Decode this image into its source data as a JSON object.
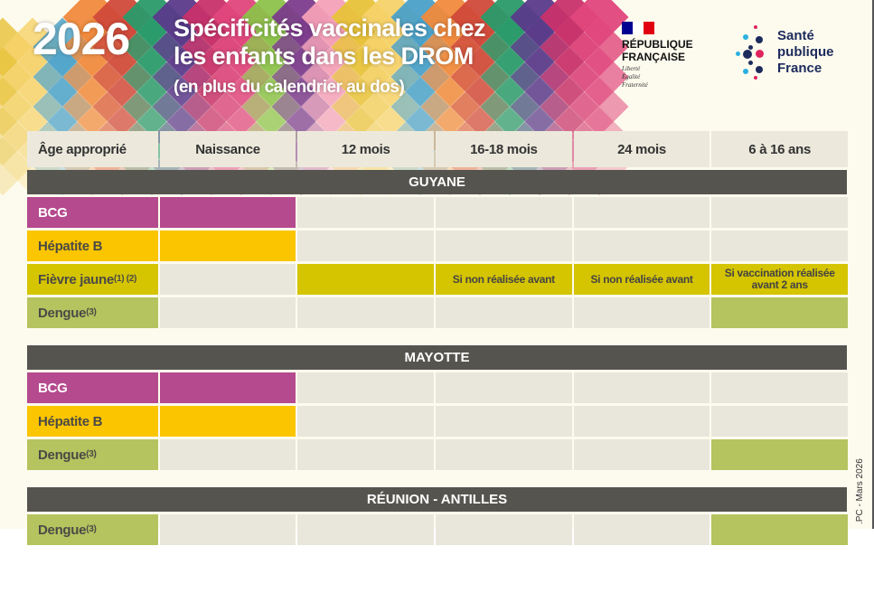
{
  "header": {
    "year": "2026",
    "title_line1": "Spécificités vaccinales chez",
    "title_line2": "les enfants dans les DROM",
    "subtitle": "(en plus du calendrier au dos)"
  },
  "logos": {
    "rf_name_1": "RÉPUBLIQUE",
    "rf_name_2": "FRANÇAISE",
    "rf_motto": [
      "Liberté",
      "Égalité",
      "Fraternité"
    ],
    "spf": [
      "Santé",
      "publique",
      "France"
    ]
  },
  "colors": {
    "bcg": "#b54a8e",
    "hepatite_b": "#fbc500",
    "fievre_jaune": "#d5c400",
    "dengue": "#b5c45f",
    "empty": "#e9e7dc",
    "section": "#56544f"
  },
  "table": {
    "columns": [
      "Âge approprié",
      "Naissance",
      "12 mois",
      "16-18 mois",
      "24 mois",
      "6 à 16 ans"
    ],
    "sections": [
      {
        "name": "GUYANE",
        "rows": [
          {
            "label": "BCG",
            "sup": "",
            "type": "bcg",
            "cells": [
              {
                "fill": true,
                "text": ""
              },
              {
                "fill": false,
                "text": ""
              },
              {
                "fill": false,
                "text": ""
              },
              {
                "fill": false,
                "text": ""
              },
              {
                "fill": false,
                "text": ""
              }
            ]
          },
          {
            "label": "Hépatite B",
            "sup": "",
            "type": "hepatite_b",
            "cells": [
              {
                "fill": true,
                "text": ""
              },
              {
                "fill": false,
                "text": ""
              },
              {
                "fill": false,
                "text": ""
              },
              {
                "fill": false,
                "text": ""
              },
              {
                "fill": false,
                "text": ""
              }
            ]
          },
          {
            "label": "Fièvre jaune",
            "sup": "(1) (2)",
            "type": "fievre_jaune",
            "cells": [
              {
                "fill": false,
                "text": ""
              },
              {
                "fill": true,
                "text": ""
              },
              {
                "fill": true,
                "text": "Si non réalisée avant"
              },
              {
                "fill": true,
                "text": "Si non réalisée avant"
              },
              {
                "fill": true,
                "text": "Si vaccination réalisée avant 2 ans"
              }
            ]
          },
          {
            "label": "Dengue",
            "sup": "(3)",
            "type": "dengue",
            "cells": [
              {
                "fill": false,
                "text": ""
              },
              {
                "fill": false,
                "text": ""
              },
              {
                "fill": false,
                "text": ""
              },
              {
                "fill": false,
                "text": ""
              },
              {
                "fill": true,
                "text": ""
              }
            ]
          }
        ]
      },
      {
        "name": "MAYOTTE",
        "rows": [
          {
            "label": "BCG",
            "sup": "",
            "type": "bcg",
            "cells": [
              {
                "fill": true,
                "text": ""
              },
              {
                "fill": false,
                "text": ""
              },
              {
                "fill": false,
                "text": ""
              },
              {
                "fill": false,
                "text": ""
              },
              {
                "fill": false,
                "text": ""
              }
            ]
          },
          {
            "label": "Hépatite B",
            "sup": "",
            "type": "hepatite_b",
            "cells": [
              {
                "fill": true,
                "text": ""
              },
              {
                "fill": false,
                "text": ""
              },
              {
                "fill": false,
                "text": ""
              },
              {
                "fill": false,
                "text": ""
              },
              {
                "fill": false,
                "text": ""
              }
            ]
          },
          {
            "label": "Dengue",
            "sup": "(3)",
            "type": "dengue",
            "cells": [
              {
                "fill": false,
                "text": ""
              },
              {
                "fill": false,
                "text": ""
              },
              {
                "fill": false,
                "text": ""
              },
              {
                "fill": false,
                "text": ""
              },
              {
                "fill": true,
                "text": ""
              }
            ]
          }
        ]
      },
      {
        "name": "RÉUNION - ANTILLES",
        "rows": [
          {
            "label": "Dengue",
            "sup": "(3)",
            "type": "dengue",
            "cells": [
              {
                "fill": false,
                "text": ""
              },
              {
                "fill": false,
                "text": ""
              },
              {
                "fill": false,
                "text": ""
              },
              {
                "fill": false,
                "text": ""
              },
              {
                "fill": true,
                "text": ""
              }
            ]
          }
        ]
      }
    ]
  },
  "footer": ".PC  -  Mars 2026"
}
